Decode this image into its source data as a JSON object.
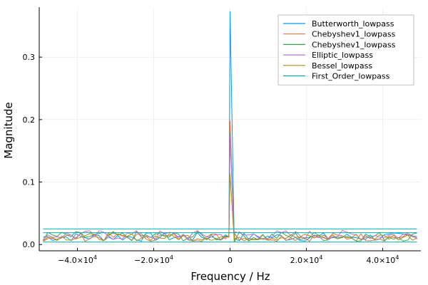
{
  "chart_data": {
    "type": "line",
    "xlabel": "Frequency  / Hz",
    "ylabel": "Magnitude",
    "xlim": [
      -50000,
      50000
    ],
    "ylim": [
      -0.01,
      0.38
    ],
    "x_ticks": [
      {
        "value": -40000,
        "mantissa": "−4.0×10",
        "exp": "4"
      },
      {
        "value": -20000,
        "mantissa": "−2.0×10",
        "exp": "4"
      },
      {
        "value": 0,
        "mantissa": "0",
        "exp": ""
      },
      {
        "value": 20000,
        "mantissa": "2.0×10",
        "exp": "4"
      },
      {
        "value": 40000,
        "mantissa": "4.0×10",
        "exp": "4"
      }
    ],
    "y_ticks": [
      {
        "value": 0.0,
        "label": "0.0"
      },
      {
        "value": 0.1,
        "label": "0.1"
      },
      {
        "value": 0.2,
        "label": "0.2"
      },
      {
        "value": 0.3,
        "label": "0.3"
      }
    ],
    "grid": true,
    "legend_position": "top-right",
    "x_range_data": [
      -49000,
      49000
    ],
    "series": [
      {
        "name": "Butterworth_lowpass",
        "color": "#009AFA",
        "peak": 0.373,
        "base": 0.012,
        "noise": 0.007,
        "floor": 0.0
      },
      {
        "name": "Chebyshev1_lowpass",
        "color": "#E36F47",
        "peak": 0.198,
        "base": 0.012,
        "noise": 0.007,
        "floor": 0.0
      },
      {
        "name": "Chebyshev1_lowpass",
        "color": "#3EA44E",
        "peak": 0.178,
        "base": 0.013,
        "noise": 0.008,
        "floor": 0.0
      },
      {
        "name": "Elliptic_lowpass",
        "color": "#C271D2",
        "peak": 0.175,
        "base": 0.015,
        "noise": 0.008,
        "floor": 0.0
      },
      {
        "name": "Bessel_lowpass",
        "color": "#AC8E18",
        "peak": 0.113,
        "base": 0.012,
        "noise": 0.006,
        "floor": 0.0
      },
      {
        "name": "First_Order_lowpass",
        "color": "#00A9AD",
        "peak": 0.019,
        "base": 0.019,
        "noise": 0.0,
        "floor": 0.0
      },
      {
        "name": "",
        "color": "#00A9AD",
        "peak": 0.025,
        "base": 0.025,
        "noise": 0.0,
        "floor": 0.0
      },
      {
        "name": "",
        "color": "#00A9AD",
        "peak": 0.004,
        "base": 0.004,
        "noise": 0.0,
        "floor": 0.0
      }
    ]
  }
}
